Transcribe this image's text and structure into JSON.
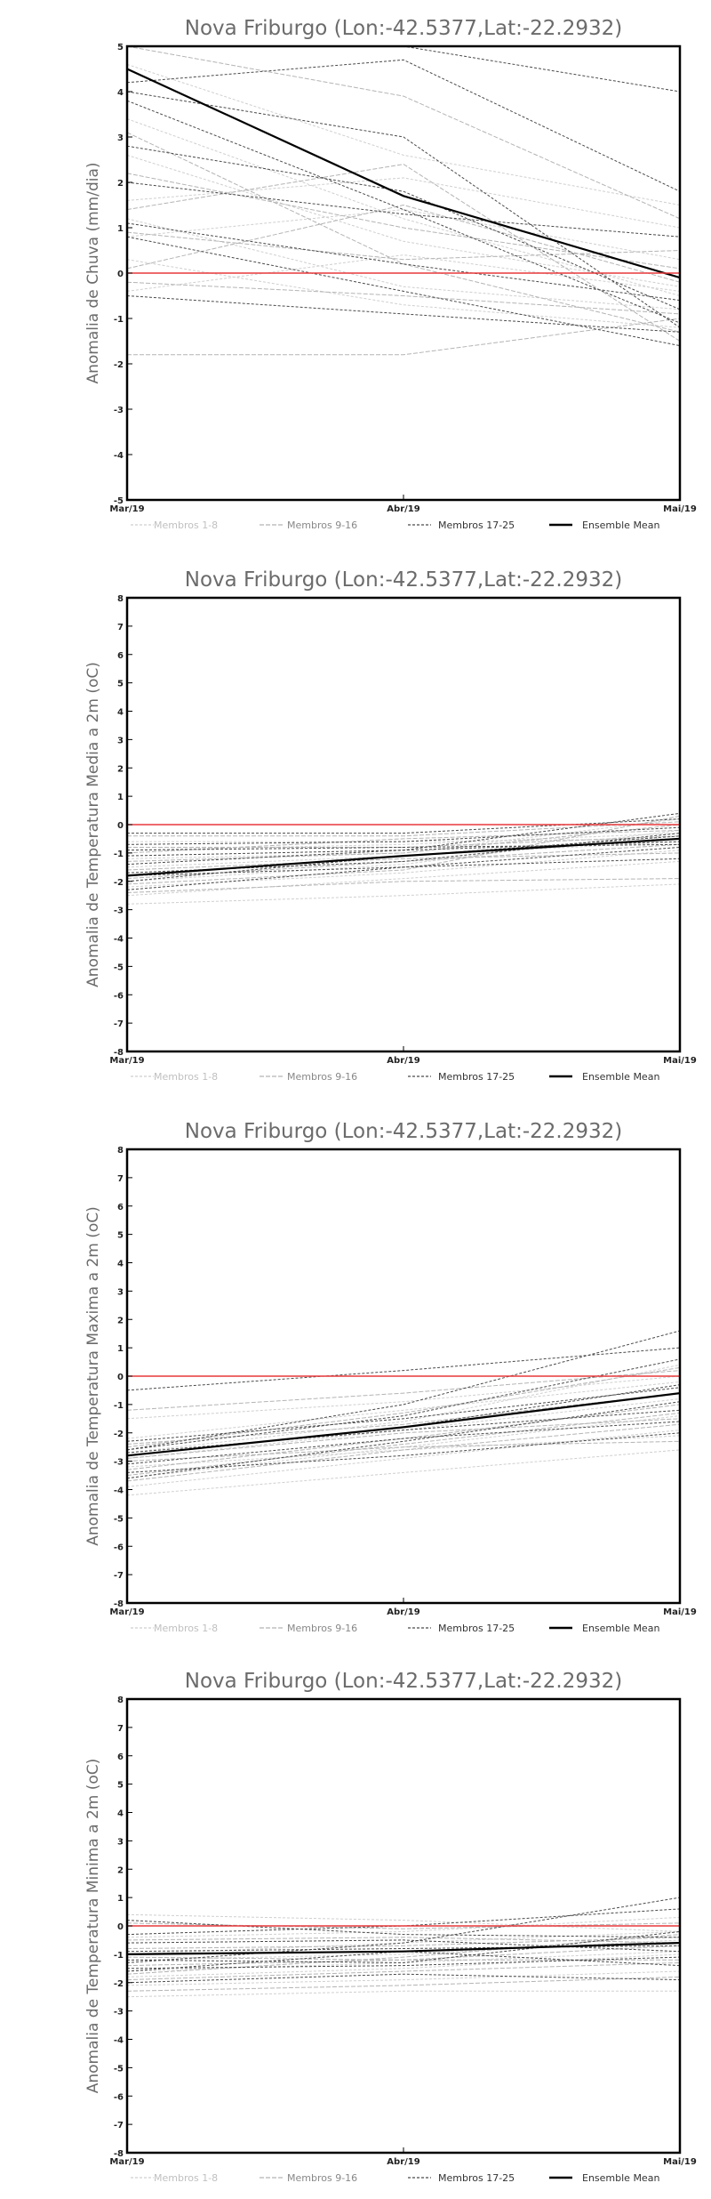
{
  "chart_data": [
    {
      "type": "line",
      "title": "Nova Friburgo (Lon:-42.5377,Lat:-22.2932)",
      "ylabel": "Anomalia de Chuva (mm/dia)",
      "xlabel": "",
      "categories": [
        "Mar/19",
        "Abr/19",
        "Mai/19"
      ],
      "ylim": [
        -5,
        5
      ],
      "yticks": [
        -5,
        -4,
        -3,
        -2,
        -1,
        0,
        1,
        2,
        3,
        4,
        5
      ],
      "reference_line": 0,
      "legend": [
        "Membros 1-8",
        "Membros 9-16",
        "Membros 17-25",
        "Ensemble Mean"
      ],
      "series": [
        {
          "name": "Membros 1-8",
          "values": [
            3.4,
            1.2,
            -0.5
          ]
        },
        {
          "name": "Membros 1-8",
          "values": [
            2.6,
            0.7,
            -0.3
          ]
        },
        {
          "name": "Membros 1-8",
          "values": [
            1.6,
            2.1,
            1.0
          ]
        },
        {
          "name": "Membros 1-8",
          "values": [
            1.2,
            -0.3,
            -0.8
          ]
        },
        {
          "name": "Membros 1-8",
          "values": [
            0.8,
            1.4,
            0.3
          ]
        },
        {
          "name": "Membros 1-8",
          "values": [
            0.3,
            -0.7,
            -1.2
          ]
        },
        {
          "name": "Membros 1-8",
          "values": [
            4.6,
            2.6,
            1.5
          ]
        },
        {
          "name": "Membros 1-8",
          "values": [
            -0.4,
            0.4,
            -0.4
          ]
        },
        {
          "name": "Membros 9-16",
          "values": [
            5.0,
            3.9,
            1.2
          ]
        },
        {
          "name": "Membros 9-16",
          "values": [
            3.1,
            0.2,
            -1.3
          ]
        },
        {
          "name": "Membros 9-16",
          "values": [
            2.2,
            1.0,
            0.1
          ]
        },
        {
          "name": "Membros 9-16",
          "values": [
            1.4,
            2.4,
            -1.5
          ]
        },
        {
          "name": "Membros 9-16",
          "values": [
            0.9,
            0.3,
            0.5
          ]
        },
        {
          "name": "Membros 9-16",
          "values": [
            -0.2,
            -0.5,
            -0.9
          ]
        },
        {
          "name": "Membros 9-16",
          "values": [
            -1.8,
            -1.8,
            -1.0
          ]
        },
        {
          "name": "Membros 9-16",
          "values": [
            0.1,
            1.5,
            -0.2
          ]
        },
        {
          "name": "Membros 17-25",
          "values": [
            5.0,
            5.0,
            4.0
          ]
        },
        {
          "name": "Membros 17-25",
          "values": [
            4.2,
            4.7,
            1.8
          ]
        },
        {
          "name": "Membros 17-25",
          "values": [
            3.8,
            1.4,
            -1.1
          ]
        },
        {
          "name": "Membros 17-25",
          "values": [
            2.8,
            1.8,
            -0.8
          ]
        },
        {
          "name": "Membros 17-25",
          "values": [
            2.0,
            1.3,
            0.8
          ]
        },
        {
          "name": "Membros 17-25",
          "values": [
            1.1,
            0.2,
            -0.6
          ]
        },
        {
          "name": "Membros 17-25",
          "values": [
            0.8,
            -0.4,
            -1.6
          ]
        },
        {
          "name": "Membros 17-25",
          "values": [
            -0.5,
            -0.9,
            -1.3
          ]
        },
        {
          "name": "Membros 17-25",
          "values": [
            4.0,
            3.0,
            -1.2
          ]
        },
        {
          "name": "Ensemble Mean",
          "values": [
            4.5,
            1.7,
            -0.1
          ]
        }
      ]
    },
    {
      "type": "line",
      "title": "Nova Friburgo (Lon:-42.5377,Lat:-22.2932)",
      "ylabel": "Anomalia de Temperatura Media a 2m (oC)",
      "xlabel": "",
      "categories": [
        "Mar/19",
        "Abr/19",
        "Mai/19"
      ],
      "ylim": [
        -8,
        8
      ],
      "yticks": [
        -8,
        -7,
        -6,
        -5,
        -4,
        -3,
        -2,
        -1,
        0,
        1,
        2,
        3,
        4,
        5,
        6,
        7,
        8
      ],
      "reference_line": 0,
      "legend": [
        "Membros 1-8",
        "Membros 9-16",
        "Membros 17-25",
        "Ensemble Mean"
      ],
      "series": [
        {
          "name": "Membros 1-8",
          "values": [
            -2.8,
            -2.5,
            -2.1
          ]
        },
        {
          "name": "Membros 1-8",
          "values": [
            -2.2,
            -1.7,
            -0.9
          ]
        },
        {
          "name": "Membros 1-8",
          "values": [
            -1.5,
            -1.1,
            -0.6
          ]
        },
        {
          "name": "Membros 1-8",
          "values": [
            -0.9,
            -0.7,
            -0.3
          ]
        },
        {
          "name": "Membros 1-8",
          "values": [
            -2.5,
            -1.9,
            -1.3
          ]
        },
        {
          "name": "Membros 1-8",
          "values": [
            -1.2,
            -1.0,
            0.2
          ]
        },
        {
          "name": "Membros 1-8",
          "values": [
            -2.0,
            -1.4,
            -0.2
          ]
        },
        {
          "name": "Membros 1-8",
          "values": [
            -0.6,
            -0.6,
            -0.5
          ]
        },
        {
          "name": "Membros 9-16",
          "values": [
            -2.4,
            -2.0,
            -1.9
          ]
        },
        {
          "name": "Membros 9-16",
          "values": [
            -1.9,
            -1.3,
            -0.7
          ]
        },
        {
          "name": "Membros 9-16",
          "values": [
            -1.3,
            -1.0,
            0.0
          ]
        },
        {
          "name": "Membros 9-16",
          "values": [
            -0.8,
            -0.8,
            -0.4
          ]
        },
        {
          "name": "Membros 9-16",
          "values": [
            -1.6,
            -1.2,
            -1.0
          ]
        },
        {
          "name": "Membros 9-16",
          "values": [
            -2.1,
            -1.6,
            0.3
          ]
        },
        {
          "name": "Membros 9-16",
          "values": [
            -1.0,
            -0.5,
            -0.2
          ]
        },
        {
          "name": "Membros 9-16",
          "values": [
            -0.4,
            -0.4,
            0.1
          ]
        },
        {
          "name": "Membros 17-25",
          "values": [
            -2.3,
            -1.5,
            -0.8
          ]
        },
        {
          "name": "Membros 17-25",
          "values": [
            -1.8,
            -1.5,
            -1.2
          ]
        },
        {
          "name": "Membros 17-25",
          "values": [
            -1.4,
            -0.9,
            0.4
          ]
        },
        {
          "name": "Membros 17-25",
          "values": [
            -1.1,
            -0.9,
            -0.6
          ]
        },
        {
          "name": "Membros 17-25",
          "values": [
            -0.7,
            -0.6,
            -0.1
          ]
        },
        {
          "name": "Membros 17-25",
          "values": [
            -0.3,
            -0.3,
            0.2
          ]
        },
        {
          "name": "Membros 17-25",
          "values": [
            -2.0,
            -1.1,
            -0.4
          ]
        },
        {
          "name": "Membros 17-25",
          "values": [
            -1.7,
            -1.3,
            -0.3
          ]
        },
        {
          "name": "Membros 17-25",
          "values": [
            -0.9,
            -0.8,
            -0.7
          ]
        },
        {
          "name": "Ensemble Mean",
          "values": [
            -1.8,
            -1.1,
            -0.5
          ]
        }
      ]
    },
    {
      "type": "line",
      "title": "Nova Friburgo (Lon:-42.5377,Lat:-22.2932)",
      "ylabel": "Anomalia de Temperatura Maxima a 2m (oC)",
      "xlabel": "",
      "categories": [
        "Mar/19",
        "Abr/19",
        "Mai/19"
      ],
      "ylim": [
        -8,
        8
      ],
      "yticks": [
        -8,
        -7,
        -6,
        -5,
        -4,
        -3,
        -2,
        -1,
        0,
        1,
        2,
        3,
        4,
        5,
        6,
        7,
        8
      ],
      "reference_line": 0,
      "legend": [
        "Membros 1-8",
        "Membros 9-16",
        "Membros 17-25",
        "Ensemble Mean"
      ],
      "series": [
        {
          "name": "Membros 1-8",
          "values": [
            -4.2,
            -3.4,
            -2.6
          ]
        },
        {
          "name": "Membros 1-8",
          "values": [
            -3.6,
            -2.5,
            -1.4
          ]
        },
        {
          "name": "Membros 1-8",
          "values": [
            -2.9,
            -1.9,
            -0.8
          ]
        },
        {
          "name": "Membros 1-8",
          "values": [
            -2.2,
            -1.2,
            -0.2
          ]
        },
        {
          "name": "Membros 1-8",
          "values": [
            -1.5,
            -0.9,
            0.0
          ]
        },
        {
          "name": "Membros 1-8",
          "values": [
            -3.2,
            -2.6,
            -2.1
          ]
        },
        {
          "name": "Membros 1-8",
          "values": [
            -2.7,
            -1.6,
            0.4
          ]
        },
        {
          "name": "Membros 1-8",
          "values": [
            -3.9,
            -2.9,
            -1.9
          ]
        },
        {
          "name": "Membros 9-16",
          "values": [
            -3.5,
            -2.4,
            -1.3
          ]
        },
        {
          "name": "Membros 9-16",
          "values": [
            -2.9,
            -2.0,
            -1.5
          ]
        },
        {
          "name": "Membros 9-16",
          "values": [
            -2.5,
            -1.3,
            0.3
          ]
        },
        {
          "name": "Membros 9-16",
          "values": [
            -3.3,
            -2.2,
            -1.0
          ]
        },
        {
          "name": "Membros 9-16",
          "values": [
            -2.4,
            -1.7,
            -0.6
          ]
        },
        {
          "name": "Membros 9-16",
          "values": [
            -3.0,
            -2.5,
            -2.3
          ]
        },
        {
          "name": "Membros 9-16",
          "values": [
            -1.2,
            -0.6,
            0.2
          ]
        },
        {
          "name": "Membros 9-16",
          "values": [
            -3.7,
            -2.6,
            -1.7
          ]
        },
        {
          "name": "Membros 17-25",
          "values": [
            -0.5,
            0.2,
            1.0
          ]
        },
        {
          "name": "Membros 17-25",
          "values": [
            -2.6,
            -1.0,
            1.6
          ]
        },
        {
          "name": "Membros 17-25",
          "values": [
            -2.8,
            -1.8,
            -0.3
          ]
        },
        {
          "name": "Membros 17-25",
          "values": [
            -3.1,
            -2.2,
            -1.6
          ]
        },
        {
          "name": "Membros 17-25",
          "values": [
            -2.6,
            -1.4,
            0.6
          ]
        },
        {
          "name": "Membros 17-25",
          "values": [
            -3.4,
            -2.8,
            -2.0
          ]
        },
        {
          "name": "Membros 17-25",
          "values": [
            -2.7,
            -1.9,
            -1.2
          ]
        },
        {
          "name": "Membros 17-25",
          "values": [
            -3.6,
            -2.3,
            -0.9
          ]
        },
        {
          "name": "Membros 17-25",
          "values": [
            -2.3,
            -1.5,
            -0.4
          ]
        },
        {
          "name": "Ensemble Mean",
          "values": [
            -2.8,
            -1.8,
            -0.6
          ]
        }
      ]
    },
    {
      "type": "line",
      "title": "Nova Friburgo (Lon:-42.5377,Lat:-22.2932)",
      "ylabel": "Anomalia de Temperatura Minima a 2m (oC)",
      "xlabel": "",
      "categories": [
        "Mar/19",
        "Abr/19",
        "Mai/19"
      ],
      "ylim": [
        -8,
        8
      ],
      "yticks": [
        -8,
        -7,
        -6,
        -5,
        -4,
        -3,
        -2,
        -1,
        0,
        1,
        2,
        3,
        4,
        5,
        6,
        7,
        8
      ],
      "reference_line": 0,
      "legend": [
        "Membros 1-8",
        "Membros 9-16",
        "Membros 17-25",
        "Ensemble Mean"
      ],
      "series": [
        {
          "name": "Membros 1-8",
          "values": [
            -2.5,
            -2.3,
            -2.3
          ]
        },
        {
          "name": "Membros 1-8",
          "values": [
            -2.1,
            -1.9,
            -1.6
          ]
        },
        {
          "name": "Membros 1-8",
          "values": [
            -1.6,
            -1.3,
            -0.9
          ]
        },
        {
          "name": "Membros 1-8",
          "values": [
            -1.0,
            -0.6,
            -0.2
          ]
        },
        {
          "name": "Membros 1-8",
          "values": [
            -0.4,
            -0.2,
            0.3
          ]
        },
        {
          "name": "Membros 1-8",
          "values": [
            0.4,
            0.2,
            -0.2
          ]
        },
        {
          "name": "Membros 1-8",
          "values": [
            -1.8,
            -1.5,
            -1.0
          ]
        },
        {
          "name": "Membros 1-8",
          "values": [
            -1.2,
            -1.0,
            -0.5
          ]
        },
        {
          "name": "Membros 9-16",
          "values": [
            -2.3,
            -2.1,
            -1.8
          ]
        },
        {
          "name": "Membros 9-16",
          "values": [
            -1.9,
            -1.6,
            -1.3
          ]
        },
        {
          "name": "Membros 9-16",
          "values": [
            -1.4,
            -1.2,
            -0.7
          ]
        },
        {
          "name": "Membros 9-16",
          "values": [
            -0.8,
            -0.7,
            -0.4
          ]
        },
        {
          "name": "Membros 9-16",
          "values": [
            0.1,
            -0.1,
            0.1
          ]
        },
        {
          "name": "Membros 9-16",
          "values": [
            -1.1,
            -1.2,
            -1.2
          ]
        },
        {
          "name": "Membros 9-16",
          "values": [
            -0.5,
            -0.4,
            -0.6
          ]
        },
        {
          "name": "Membros 9-16",
          "values": [
            -1.7,
            -1.1,
            -0.3
          ]
        },
        {
          "name": "Membros 17-25",
          "values": [
            -1.3,
            -0.6,
            1.0
          ]
        },
        {
          "name": "Membros 17-25",
          "values": [
            -0.6,
            -0.5,
            -0.9
          ]
        },
        {
          "name": "Membros 17-25",
          "values": [
            -1.5,
            -1.4,
            -1.1
          ]
        },
        {
          "name": "Membros 17-25",
          "values": [
            -0.3,
            0.0,
            0.6
          ]
        },
        {
          "name": "Membros 17-25",
          "values": [
            -2.0,
            -1.7,
            -1.9
          ]
        },
        {
          "name": "Membros 17-25",
          "values": [
            -0.9,
            -0.8,
            -0.7
          ]
        },
        {
          "name": "Membros 17-25",
          "values": [
            -1.2,
            -1.3,
            -0.2
          ]
        },
        {
          "name": "Membros 17-25",
          "values": [
            0.2,
            -0.3,
            -0.4
          ]
        },
        {
          "name": "Membros 17-25",
          "values": [
            -1.6,
            -0.9,
            -1.4
          ]
        },
        {
          "name": "Ensemble Mean",
          "values": [
            -1.0,
            -0.9,
            -0.6
          ]
        }
      ]
    }
  ],
  "style": {
    "background": "#ffffff",
    "axes_color": "#000000",
    "zero_line_color": "#e8393c",
    "members_1_8_color": "#cfcfcf",
    "members_9_16_color": "#b4b4b4",
    "members_17_25_color": "#4a4a4a",
    "ensemble_mean_color": "#000000"
  }
}
